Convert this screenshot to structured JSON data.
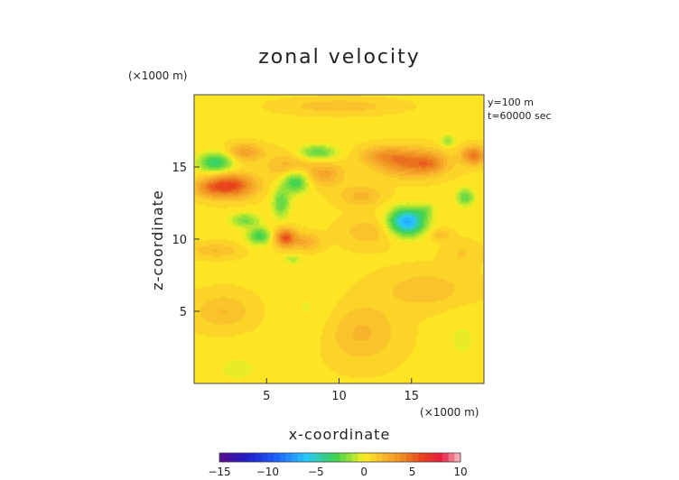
{
  "chart_data": {
    "type": "heatmap",
    "title": "zonal velocity",
    "xlabel": "x-coordinate",
    "ylabel": "z-coordinate",
    "x_unit": "(×1000 m)",
    "y_unit": "(×1000 m)",
    "annotations": [
      "y=100 m",
      "t=60000 sec"
    ],
    "xlim": [
      0,
      20
    ],
    "ylim": [
      0,
      20
    ],
    "x_ticks": [
      5,
      10,
      15
    ],
    "y_ticks": [
      5,
      10,
      15
    ],
    "colorbar": {
      "min": -15,
      "max": 10,
      "ticks": [
        -15,
        -10,
        -5,
        0,
        5,
        10
      ],
      "tick_labels": [
        "−15",
        "−10",
        "−5",
        "0",
        "5",
        "10"
      ],
      "stops": [
        {
          "v": -15,
          "color": "#5a0a8c"
        },
        {
          "v": -12,
          "color": "#1e1ec8"
        },
        {
          "v": -9,
          "color": "#1e64ff"
        },
        {
          "v": -6,
          "color": "#28c8ff"
        },
        {
          "v": -3,
          "color": "#3cd250"
        },
        {
          "v": -1,
          "color": "#b4e632"
        },
        {
          "v": 0,
          "color": "#ffee22"
        },
        {
          "v": 2,
          "color": "#f9b72d"
        },
        {
          "v": 4,
          "color": "#ee8a20"
        },
        {
          "v": 6,
          "color": "#e8411b"
        },
        {
          "v": 8,
          "color": "#e61e3c"
        },
        {
          "v": 10,
          "color": "#f5c0c8"
        }
      ]
    },
    "field": {
      "background": 0.5,
      "features": [
        {
          "x": 2.5,
          "z": 13.7,
          "sx": 1.6,
          "sz": 0.8,
          "amp": 5.5
        },
        {
          "x": 1.0,
          "z": 13.5,
          "sx": 1.0,
          "sz": 0.6,
          "amp": 2.0
        },
        {
          "x": 1.5,
          "z": 15.3,
          "sx": 1.2,
          "sz": 0.7,
          "amp": -4.0
        },
        {
          "x": 3.5,
          "z": 16.0,
          "sx": 1.2,
          "sz": 0.6,
          "amp": 2.5
        },
        {
          "x": 6.5,
          "z": 15.0,
          "sx": 1.4,
          "sz": 0.9,
          "amp": 1.8
        },
        {
          "x": 7.0,
          "z": 14.0,
          "sx": 0.9,
          "sz": 0.8,
          "amp": -4.0
        },
        {
          "x": 8.5,
          "z": 16.0,
          "sx": 1.3,
          "sz": 0.5,
          "amp": -3.0
        },
        {
          "x": 6.0,
          "z": 12.5,
          "sx": 0.6,
          "sz": 1.0,
          "amp": -3.0
        },
        {
          "x": 9.0,
          "z": 14.5,
          "sx": 1.3,
          "sz": 0.8,
          "amp": 2.2
        },
        {
          "x": 4.5,
          "z": 10.2,
          "sx": 0.8,
          "sz": 0.6,
          "amp": -3.5
        },
        {
          "x": 3.5,
          "z": 11.3,
          "sx": 1.0,
          "sz": 0.5,
          "amp": -2.5
        },
        {
          "x": 6.3,
          "z": 10.1,
          "sx": 0.7,
          "sz": 0.6,
          "amp": 5.0
        },
        {
          "x": 7.7,
          "z": 9.8,
          "sx": 1.0,
          "sz": 0.6,
          "amp": 2.0
        },
        {
          "x": 6.8,
          "z": 8.6,
          "sx": 0.6,
          "sz": 0.3,
          "amp": -1.5
        },
        {
          "x": 15.0,
          "z": 15.3,
          "sx": 2.2,
          "sz": 0.9,
          "amp": 4.0
        },
        {
          "x": 13.0,
          "z": 15.8,
          "sx": 1.5,
          "sz": 0.6,
          "amp": 2.0
        },
        {
          "x": 16.3,
          "z": 15.2,
          "sx": 0.9,
          "sz": 0.6,
          "amp": 1.5
        },
        {
          "x": 19.3,
          "z": 15.8,
          "sx": 0.8,
          "sz": 0.6,
          "amp": 4.0
        },
        {
          "x": 17.5,
          "z": 16.8,
          "sx": 0.5,
          "sz": 0.4,
          "amp": -2.0
        },
        {
          "x": 14.7,
          "z": 11.2,
          "sx": 1.2,
          "sz": 0.9,
          "amp": -7.5
        },
        {
          "x": 16.0,
          "z": 12.0,
          "sx": 0.6,
          "sz": 0.5,
          "amp": -1.5
        },
        {
          "x": 18.7,
          "z": 12.9,
          "sx": 0.6,
          "sz": 0.6,
          "amp": -3.0
        },
        {
          "x": 17.0,
          "z": 10.3,
          "sx": 0.8,
          "sz": 0.4,
          "amp": 1.2
        },
        {
          "x": 11.5,
          "z": 13.0,
          "sx": 1.5,
          "sz": 0.7,
          "amp": 1.6
        },
        {
          "x": 12.0,
          "z": 10.5,
          "sx": 1.8,
          "sz": 1.0,
          "amp": 1.2
        },
        {
          "x": 1.5,
          "z": 9.2,
          "sx": 1.6,
          "sz": 0.5,
          "amp": 1.4
        },
        {
          "x": 8.0,
          "z": 5.0,
          "sx": 2.0,
          "sz": 2.5,
          "amp": -0.6
        },
        {
          "x": 2.0,
          "z": 5.0,
          "sx": 2.0,
          "sz": 1.2,
          "amp": 1.4
        },
        {
          "x": 11.5,
          "z": 3.5,
          "sx": 2.5,
          "sz": 2.0,
          "amp": 1.5
        },
        {
          "x": 3.0,
          "z": 1.0,
          "sx": 2.5,
          "sz": 1.4,
          "amp": -0.6
        },
        {
          "x": 18.5,
          "z": 3.0,
          "sx": 1.5,
          "sz": 2.0,
          "amp": -0.6
        },
        {
          "x": 16.0,
          "z": 6.5,
          "sx": 3.0,
          "sz": 1.3,
          "amp": 1.2
        },
        {
          "x": 18.5,
          "z": 9.0,
          "sx": 1.2,
          "sz": 0.8,
          "amp": 0.8
        },
        {
          "x": 10.0,
          "z": 19.2,
          "sx": 3.5,
          "sz": 0.5,
          "amp": 1.3
        }
      ]
    }
  }
}
